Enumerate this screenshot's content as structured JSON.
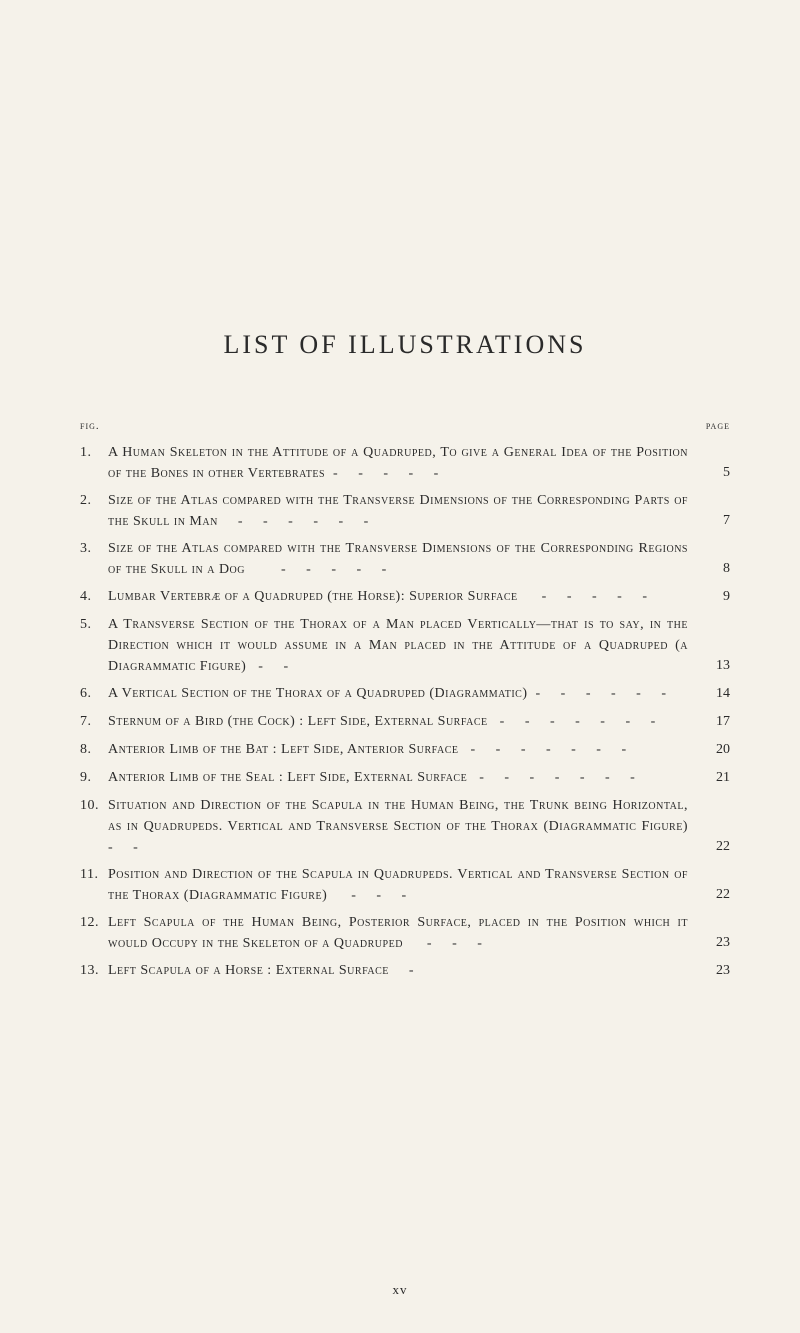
{
  "title": "LIST OF ILLUSTRATIONS",
  "header_left": "fig.",
  "header_right": "page",
  "footer": "xv",
  "entries": [
    {
      "num": "1.",
      "text": "A Human Skeleton in the Attitude of a Quadruped, To give a General Idea of the Position of the Bones in other Vertebrates  -     -     -     -     -",
      "page": "5"
    },
    {
      "num": "2.",
      "text": "Size of the Atlas compared with the Transverse Dimensions of the Corresponding Parts of the Skull in Man     -     -     -     -     -     -",
      "page": "7"
    },
    {
      "num": "3.",
      "text": "Size of the Atlas compared with the Transverse Dimensions of the Corresponding Regions of the Skull in a Dog         -     -     -     -     -",
      "page": "8"
    },
    {
      "num": "4.",
      "text": "Lumbar Vertebræ of a Quadruped (the Horse): Superior Surface      -     -     -     -     -",
      "page": "9"
    },
    {
      "num": "5.",
      "text": "A Transverse Section of the Thorax of a Man placed Vertically—that is to say, in the Direction which it would assume in a Man placed in the Attitude of a Quadruped (a Diagrammatic Figure)   -     -",
      "page": "13"
    },
    {
      "num": "6.",
      "text": "A Vertical Section of the Thorax of a Quadruped (Diagrammatic)  -     -     -     -     -     -",
      "page": "14"
    },
    {
      "num": "7.",
      "text": "Sternum of a Bird (the Cock) : Left Side, External Surface   -     -     -     -     -     -     -",
      "page": "17"
    },
    {
      "num": "8.",
      "text": "Anterior Limb of the Bat : Left Side, Anterior Surface   -     -     -     -     -     -     -",
      "page": "20"
    },
    {
      "num": "9.",
      "text": "Anterior Limb of the Seal : Left Side, External Surface   -     -     -     -     -     -     -",
      "page": "21"
    },
    {
      "num": "10.",
      "text": "Situation and Direction of the Scapula in the Human Being, the Trunk being Horizontal, as in Quadrupeds. Vertical and Transverse Section of the Thorax (Diagrammatic Figure)      -     -",
      "page": "22"
    },
    {
      "num": "11.",
      "text": "Position and Direction of the Scapula in Quadrupeds. Vertical and Transverse Section of the Thorax (Diagrammatic Figure)      -     -     -",
      "page": "22"
    },
    {
      "num": "12.",
      "text": "Left Scapula of the Human Being, Posterior Surface, placed in the Position which it would Occupy in the Skeleton of a Quadruped      -     -     -",
      "page": "23"
    },
    {
      "num": "13.",
      "text": "Left Scapula of a Horse : External Surface     -",
      "page": "23"
    }
  ]
}
